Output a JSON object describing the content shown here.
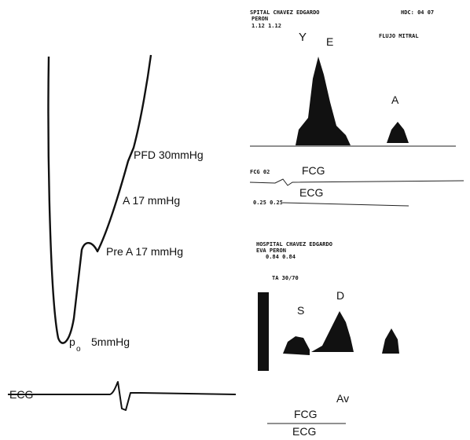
{
  "pressure_panel": {
    "labels": {
      "pfd": "PFD 30mmHg",
      "a": "A 17 mmHg",
      "pre_a": "Pre A 17 mmHg",
      "p": "p",
      "p_sub": "o",
      "p_value": "5mmHg",
      "ecg": "ECG"
    }
  },
  "mitral_panel": {
    "header": "SPITAL CHAVEZ EDGARDO",
    "header_right": "HDC: 04  07",
    "patient": "PERON",
    "scale": "1.12 1.12",
    "caption": "FLUJO MITRAL",
    "y_label": "Y",
    "e_label": "E",
    "a_label": "A",
    "fcg_code": "FCG  02",
    "fcg": "FCG",
    "ecg": "ECG",
    "scale2": "0.25 0.25"
  },
  "venous_panel": {
    "header": "HOSPITAL CHAVEZ EDGARDO",
    "patient": "EVA PERON",
    "scale": "0.84 0.84",
    "ta": "TA  30/70",
    "s_label": "S",
    "d_label": "D",
    "av_label": "Av",
    "fcg": "FCG",
    "ecg": "ECG"
  }
}
